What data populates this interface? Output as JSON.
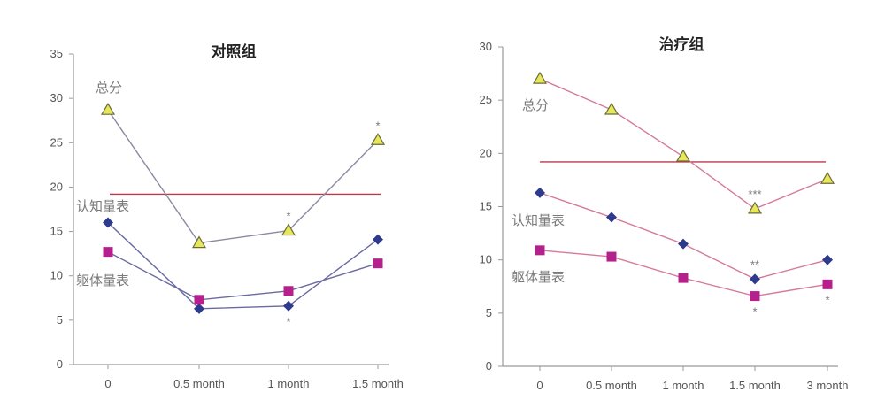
{
  "colors": {
    "total_line": "#8a8aa0",
    "total_line_right": "#d67a9a",
    "triangle_fill": "#e6e85a",
    "triangle_stroke": "#6a6a3a",
    "diamond": "#2e3a8c",
    "square": "#b5208c",
    "lower_line": "#6a6aa0",
    "lower_line_right": "#d67a9a",
    "reference": "#b83a4a"
  },
  "chart_data": [
    {
      "type": "line",
      "title": "对照组",
      "categories": [
        "0",
        "0.5 month",
        "1 month",
        "1.5 month"
      ],
      "ylim": [
        0,
        35
      ],
      "yticks": [
        0,
        5,
        10,
        15,
        20,
        25,
        30,
        35
      ],
      "reference_line": 19.2,
      "series": [
        {
          "name": "总分",
          "marker": "triangle",
          "values": [
            28.7,
            13.7,
            15.1,
            25.3
          ]
        },
        {
          "name": "认知量表",
          "marker": "diamond",
          "values": [
            16.0,
            6.3,
            6.6,
            14.1
          ]
        },
        {
          "name": "躯体量表",
          "marker": "square",
          "values": [
            12.7,
            7.3,
            8.3,
            11.4
          ]
        }
      ],
      "annotations": [
        {
          "text": "*",
          "series": 0,
          "index": 2,
          "position": "above"
        },
        {
          "text": "*",
          "series": 0,
          "index": 3,
          "position": "above"
        },
        {
          "text": "*",
          "series": 1,
          "index": 2,
          "position": "below"
        }
      ]
    },
    {
      "type": "line",
      "title": "治疗组",
      "categories": [
        "0",
        "0.5 month",
        "1 month",
        "1.5 month",
        "3 month"
      ],
      "ylim": [
        0,
        30
      ],
      "yticks": [
        0,
        5,
        10,
        15,
        20,
        25,
        30
      ],
      "reference_line": 19.2,
      "series": [
        {
          "name": "总分",
          "marker": "triangle",
          "values": [
            27.0,
            24.1,
            19.7,
            14.8,
            17.6
          ]
        },
        {
          "name": "认知量表",
          "marker": "diamond",
          "values": [
            16.3,
            14.0,
            11.5,
            8.2,
            10.0
          ]
        },
        {
          "name": "躯体量表",
          "marker": "square",
          "values": [
            10.9,
            10.3,
            8.3,
            6.6,
            7.7
          ]
        }
      ],
      "annotations": [
        {
          "text": "***",
          "series": 0,
          "index": 3,
          "position": "above"
        },
        {
          "text": "**",
          "series": 1,
          "index": 3,
          "position": "above"
        },
        {
          "text": "*",
          "series": 2,
          "index": 3,
          "position": "below"
        },
        {
          "text": "*",
          "series": 2,
          "index": 4,
          "position": "below"
        }
      ]
    }
  ]
}
